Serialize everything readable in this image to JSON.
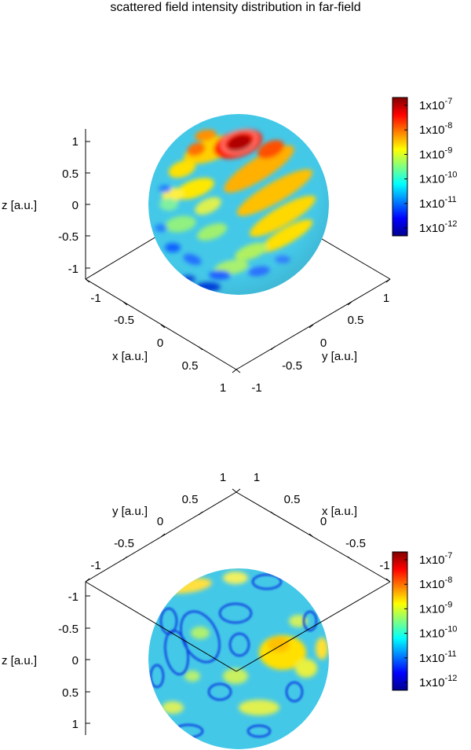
{
  "title": "scattered field intensity distribution in far-field",
  "colors": {
    "jet": [
      "#00008f",
      "#0000ff",
      "#0080ff",
      "#00ffff",
      "#80ff80",
      "#ffff00",
      "#ff8000",
      "#ff0000",
      "#800000"
    ],
    "sphere_base": "#3cc8e6"
  },
  "chart_data": [
    {
      "type": "surface",
      "id": "top",
      "view": "from above",
      "xlabel": "x [a.u.]",
      "ylabel": "y [a.u.]",
      "zlabel": "z [a.u.]",
      "xticks": [
        "-1",
        "-0.5",
        "0",
        "0.5",
        "1"
      ],
      "yticks": [
        "-1",
        "-0.5",
        "0",
        "0.5",
        "1"
      ],
      "zticks": [
        "1",
        "0.5",
        "0",
        "-0.5",
        "-1"
      ],
      "xlim": [
        -1,
        1
      ],
      "ylim": [
        -1,
        1
      ],
      "zlim": [
        -1,
        1
      ],
      "colorbar": {
        "base": "1x10",
        "exponents": [
          "-7",
          "-8",
          "-9",
          "-10",
          "-11",
          "-12"
        ],
        "range": [
          1e-12,
          1e-07
        ],
        "scale": "log"
      },
      "peak": "top region of sphere, ~1e-7"
    },
    {
      "type": "surface",
      "id": "bottom",
      "view": "from below",
      "xlabel": "x [a.u.]",
      "ylabel": "y [a.u.]",
      "zlabel": "z [a.u.]",
      "xticks": [
        "1",
        "0.5",
        "0",
        "-0.5",
        "-1"
      ],
      "yticks": [
        "1",
        "0.5",
        "0",
        "-0.5",
        "-1"
      ],
      "zticks": [
        "-1",
        "-0.5",
        "0",
        "0.5",
        "1"
      ],
      "xlim": [
        -1,
        1
      ],
      "ylim": [
        -1,
        1
      ],
      "zlim": [
        -1,
        1
      ],
      "colorbar": {
        "base": "1x10",
        "exponents": [
          "-7",
          "-8",
          "-9",
          "-10",
          "-11",
          "-12"
        ],
        "range": [
          1e-12,
          1e-07
        ],
        "scale": "log"
      },
      "peak": "right-middle region of sphere, ~1e-9"
    }
  ]
}
